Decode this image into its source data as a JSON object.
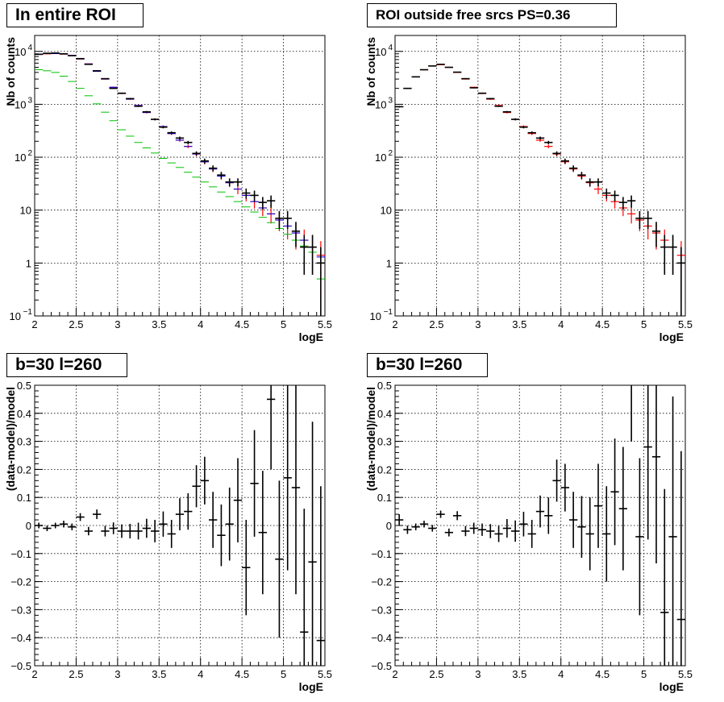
{
  "chart_data": [
    {
      "type": "scatter",
      "title": "In entire ROI",
      "xlabel": "logE",
      "ylabel": "Nb of counts",
      "xlim": [
        2,
        5.5
      ],
      "ylim": [
        0.1,
        20000
      ],
      "yscale": "log",
      "grid": true,
      "x_ticks": [
        "2",
        "2.5",
        "3",
        "3.5",
        "4",
        "4.5",
        "5",
        "5.5"
      ],
      "y_ticks": [
        {
          "v": 0.1,
          "label": "10",
          "sup": "−1"
        },
        {
          "v": 1,
          "label": "1",
          "sup": ""
        },
        {
          "v": 10,
          "label": "10",
          "sup": ""
        },
        {
          "v": 100,
          "label": "10",
          "sup": "2"
        },
        {
          "v": 1000,
          "label": "10",
          "sup": "3"
        },
        {
          "v": 10000,
          "label": "10",
          "sup": "4"
        }
      ],
      "x": [
        2.05,
        2.15,
        2.25,
        2.35,
        2.45,
        2.55,
        2.65,
        2.75,
        2.85,
        2.95,
        3.05,
        3.15,
        3.25,
        3.35,
        3.45,
        3.55,
        3.65,
        3.75,
        3.85,
        3.95,
        4.05,
        4.15,
        4.25,
        4.35,
        4.45,
        4.55,
        4.65,
        4.75,
        4.85,
        4.95,
        5.05,
        5.15,
        5.25,
        5.35,
        5.45
      ],
      "series": [
        {
          "color": "#ff0000",
          "width": 1.2,
          "values": [
            8800,
            9000,
            9100,
            8900,
            8400,
            7200,
            5800,
            4200,
            3000,
            2100,
            1600,
            1250,
            950,
            700,
            520,
            380,
            280,
            210,
            160,
            115,
            82,
            60,
            44,
            33,
            25,
            19,
            14.5,
            11,
            8.5,
            6.5,
            5,
            3.7,
            2.7,
            2,
            1.4
          ],
          "err": [
            90,
            95,
            95,
            95,
            90,
            85,
            75,
            65,
            55,
            46,
            40,
            35,
            31,
            26,
            23,
            19,
            17,
            14.5,
            12.6,
            10.7,
            9,
            7.7,
            6.6,
            5.7,
            5,
            4.4,
            3.8,
            3.3,
            2.9,
            2.5,
            2.2,
            1.9,
            1.6,
            1.4,
            1.2
          ]
        },
        {
          "color": "#0000ff",
          "width": 1,
          "values": [
            8900,
            9100,
            9100,
            8900,
            8400,
            7200,
            5800,
            4200,
            3000,
            2100,
            1600,
            1250,
            950,
            700,
            520,
            380,
            280,
            210,
            160,
            115,
            82,
            60,
            44,
            33,
            25,
            19,
            14.5,
            11,
            8.5,
            6.5,
            5,
            3.7,
            2.7,
            2,
            1.3
          ],
          "err": [
            0,
            0,
            0,
            0,
            0,
            0,
            0,
            0,
            0,
            0,
            0,
            0,
            0,
            0,
            0,
            0,
            0,
            0,
            0,
            0,
            0,
            0,
            0,
            0,
            0,
            0,
            0,
            0,
            0,
            0,
            0,
            0,
            0,
            0,
            0
          ]
        },
        {
          "color": "#00c000",
          "width": 1,
          "values": [
            4500,
            4300,
            4000,
            3400,
            2700,
            2000,
            1450,
            1020,
            710,
            490,
            330,
            250,
            190,
            150,
            120,
            95,
            78,
            64,
            52,
            42,
            34,
            27.5,
            22,
            18,
            14.5,
            11.5,
            9.2,
            7.3,
            5.8,
            4.5,
            3.5,
            2.7,
            2.1,
            1.6,
            0.5
          ],
          "err": [
            0,
            0,
            0,
            0,
            0,
            0,
            0,
            0,
            0,
            0,
            0,
            0,
            0,
            0,
            0,
            0,
            0,
            0,
            0,
            0,
            0,
            0,
            0,
            0,
            0,
            0,
            0,
            0,
            0,
            0,
            0,
            0,
            0,
            0,
            0
          ]
        },
        {
          "color": "#000000",
          "width": 1.6,
          "values": [
            8800,
            9200,
            9300,
            9000,
            8300,
            7300,
            5700,
            4300,
            3050,
            2000,
            1620,
            1280,
            920,
            720,
            520,
            370,
            290,
            230,
            190,
            118,
            85,
            62,
            46,
            34,
            34,
            21,
            19,
            14,
            15,
            7,
            7,
            4,
            2,
            2,
            1
          ],
          "err": [
            94,
            96,
            96,
            95,
            91,
            85,
            75,
            66,
            55,
            45,
            40,
            36,
            30,
            27,
            23,
            19,
            17,
            15,
            13.8,
            10.9,
            9.2,
            7.9,
            6.8,
            5.8,
            5.8,
            4.6,
            4.4,
            3.7,
            3.9,
            2.6,
            2.6,
            2,
            1.4,
            1.4,
            1
          ]
        }
      ]
    },
    {
      "type": "scatter",
      "title": "ROI outside free srcs PS=0.36",
      "xlabel": "logE",
      "ylabel": "Nb of counts",
      "xlim": [
        2,
        5.5
      ],
      "ylim": [
        0.1,
        20000
      ],
      "yscale": "log",
      "grid": true,
      "x_ticks": [
        "2",
        "2.5",
        "3",
        "3.5",
        "4",
        "4.5",
        "5",
        "5.5"
      ],
      "y_ticks": [
        {
          "v": 0.1,
          "label": "10",
          "sup": "−1"
        },
        {
          "v": 1,
          "label": "1",
          "sup": ""
        },
        {
          "v": 10,
          "label": "10",
          "sup": ""
        },
        {
          "v": 100,
          "label": "10",
          "sup": "2"
        },
        {
          "v": 1000,
          "label": "10",
          "sup": "3"
        },
        {
          "v": 10000,
          "label": "10",
          "sup": "4"
        }
      ],
      "x": [
        2.05,
        2.15,
        2.25,
        2.35,
        2.45,
        2.55,
        2.65,
        2.75,
        2.85,
        2.95,
        3.05,
        3.15,
        3.25,
        3.35,
        3.45,
        3.55,
        3.65,
        3.75,
        3.85,
        3.95,
        4.05,
        4.15,
        4.25,
        4.35,
        4.45,
        4.55,
        4.65,
        4.75,
        4.85,
        4.95,
        5.05,
        5.15,
        5.25,
        5.35,
        5.45
      ],
      "series": [
        {
          "color": "#ff0000",
          "width": 1.2,
          "values": [
            900,
            2000,
            3300,
            4500,
            5300,
            5600,
            5000,
            4000,
            3000,
            2100,
            1600,
            1250,
            950,
            700,
            520,
            380,
            280,
            210,
            160,
            115,
            82,
            60,
            44,
            33,
            25,
            19,
            14.5,
            11,
            8.5,
            6.5,
            5,
            3.7,
            2.7,
            2,
            1.4
          ],
          "err": [
            30,
            45,
            57,
            67,
            73,
            75,
            71,
            63,
            55,
            46,
            40,
            35,
            31,
            26,
            23,
            19,
            17,
            14.5,
            12.6,
            10.7,
            9,
            7.7,
            6.6,
            5.7,
            5,
            4.4,
            3.8,
            3.3,
            2.9,
            2.5,
            2.2,
            1.9,
            1.6,
            1.4,
            1.2
          ]
        },
        {
          "color": "#000000",
          "width": 1.6,
          "values": [
            900,
            2000,
            3300,
            4500,
            5300,
            5700,
            5000,
            4050,
            3050,
            2050,
            1620,
            1280,
            920,
            720,
            520,
            370,
            290,
            230,
            190,
            118,
            85,
            62,
            46,
            34,
            34,
            21,
            19,
            14,
            15,
            7,
            7,
            4,
            2,
            2,
            1
          ],
          "err": [
            30,
            45,
            57,
            67,
            73,
            75,
            71,
            64,
            55,
            45,
            40,
            36,
            30,
            27,
            23,
            19,
            17,
            15,
            13.8,
            10.9,
            9.2,
            7.9,
            6.8,
            5.8,
            5.8,
            4.6,
            4.4,
            3.7,
            3.9,
            2.6,
            2.6,
            2,
            1.4,
            1.4,
            1
          ]
        }
      ]
    },
    {
      "type": "scatter",
      "title": "b=30 l=260",
      "xlabel": "logE",
      "ylabel": "(data-model)/model",
      "xlim": [
        2,
        5.5
      ],
      "ylim": [
        -0.5,
        0.5
      ],
      "grid": true,
      "x_ticks": [
        "2",
        "2.5",
        "3",
        "3.5",
        "4",
        "4.5",
        "5",
        "5.5"
      ],
      "y_ticks": [
        {
          "v": -0.5,
          "label": "−0.5"
        },
        {
          "v": -0.4,
          "label": "−0.4"
        },
        {
          "v": -0.3,
          "label": "−0.3"
        },
        {
          "v": -0.2,
          "label": "−0.2"
        },
        {
          "v": -0.1,
          "label": "−0.1"
        },
        {
          "v": 0,
          "label": "0"
        },
        {
          "v": 0.1,
          "label": "0.1"
        },
        {
          "v": 0.2,
          "label": "0.2"
        },
        {
          "v": 0.3,
          "label": "0.3"
        },
        {
          "v": 0.4,
          "label": "0.4"
        },
        {
          "v": 0.5,
          "label": "0.5"
        }
      ],
      "x": [
        2.05,
        2.15,
        2.25,
        2.35,
        2.45,
        2.55,
        2.65,
        2.75,
        2.85,
        2.95,
        3.05,
        3.15,
        3.25,
        3.35,
        3.45,
        3.55,
        3.65,
        3.75,
        3.85,
        3.95,
        4.05,
        4.15,
        4.25,
        4.35,
        4.45,
        4.55,
        4.65,
        4.75,
        4.85,
        4.95,
        5.05,
        5.15,
        5.25,
        5.35,
        5.45
      ],
      "series": [
        {
          "color": "#000000",
          "width": 1.6,
          "values": [
            0,
            -0.01,
            0,
            0.005,
            -0.005,
            0.03,
            -0.02,
            0.04,
            -0.02,
            -0.01,
            -0.02,
            -0.02,
            -0.02,
            -0.01,
            -0.02,
            0.005,
            -0.03,
            0.04,
            0.05,
            0.14,
            0.16,
            0.02,
            -0.035,
            0.005,
            0.09,
            -0.15,
            0.15,
            -0.025,
            0.45,
            -0.12,
            0.17,
            0.135,
            -0.38,
            -0.13,
            -0.41
          ],
          "err": [
            0.01,
            0.01,
            0.01,
            0.012,
            0.012,
            0.014,
            0.015,
            0.017,
            0.019,
            0.021,
            0.024,
            0.026,
            0.03,
            0.034,
            0.04,
            0.045,
            0.05,
            0.057,
            0.065,
            0.075,
            0.085,
            0.1,
            0.11,
            0.13,
            0.15,
            0.17,
            0.19,
            0.22,
            0.25,
            0.28,
            0.33,
            0.38,
            0.44,
            0.5,
            0.55
          ]
        }
      ]
    },
    {
      "type": "scatter",
      "title": "b=30 l=260",
      "xlabel": "logE",
      "ylabel": "(data-model)/model",
      "xlim": [
        2,
        5.5
      ],
      "ylim": [
        -0.5,
        0.5
      ],
      "grid": true,
      "x_ticks": [
        "2",
        "2.5",
        "3",
        "3.5",
        "4",
        "4.5",
        "5",
        "5.5"
      ],
      "y_ticks": [
        {
          "v": -0.5,
          "label": "−0.5"
        },
        {
          "v": -0.4,
          "label": "−0.4"
        },
        {
          "v": -0.3,
          "label": "−0.3"
        },
        {
          "v": -0.2,
          "label": "−0.2"
        },
        {
          "v": -0.1,
          "label": "−0.1"
        },
        {
          "v": 0,
          "label": "0"
        },
        {
          "v": 0.1,
          "label": "0.1"
        },
        {
          "v": 0.2,
          "label": "0.2"
        },
        {
          "v": 0.3,
          "label": "0.3"
        },
        {
          "v": 0.4,
          "label": "0.4"
        },
        {
          "v": 0.5,
          "label": "0.5"
        }
      ],
      "x": [
        2.05,
        2.15,
        2.25,
        2.35,
        2.45,
        2.55,
        2.65,
        2.75,
        2.85,
        2.95,
        3.05,
        3.15,
        3.25,
        3.35,
        3.45,
        3.55,
        3.65,
        3.75,
        3.85,
        3.95,
        4.05,
        4.15,
        4.25,
        4.35,
        4.45,
        4.55,
        4.65,
        4.75,
        4.85,
        4.95,
        5.05,
        5.15,
        5.25,
        5.35,
        5.45
      ],
      "series": [
        {
          "color": "#000000",
          "width": 1.6,
          "values": [
            0.02,
            -0.015,
            -0.005,
            0.005,
            -0.01,
            0.04,
            -0.025,
            0.035,
            -0.02,
            -0.01,
            -0.015,
            -0.02,
            -0.03,
            -0.01,
            -0.02,
            0.005,
            -0.03,
            0.05,
            0.035,
            0.16,
            0.135,
            0.02,
            -0.005,
            -0.03,
            0.07,
            -0.03,
            0.12,
            0.06,
            0.55,
            -0.04,
            0.28,
            0.245,
            -0.31,
            -0.04,
            -0.335
          ],
          "err": [
            0.02,
            0.015,
            0.012,
            0.012,
            0.012,
            0.013,
            0.014,
            0.016,
            0.018,
            0.02,
            0.022,
            0.025,
            0.029,
            0.033,
            0.038,
            0.044,
            0.05,
            0.057,
            0.065,
            0.075,
            0.085,
            0.1,
            0.11,
            0.13,
            0.15,
            0.17,
            0.19,
            0.22,
            0.25,
            0.28,
            0.33,
            0.38,
            0.44,
            0.5,
            0.6
          ]
        }
      ]
    }
  ]
}
